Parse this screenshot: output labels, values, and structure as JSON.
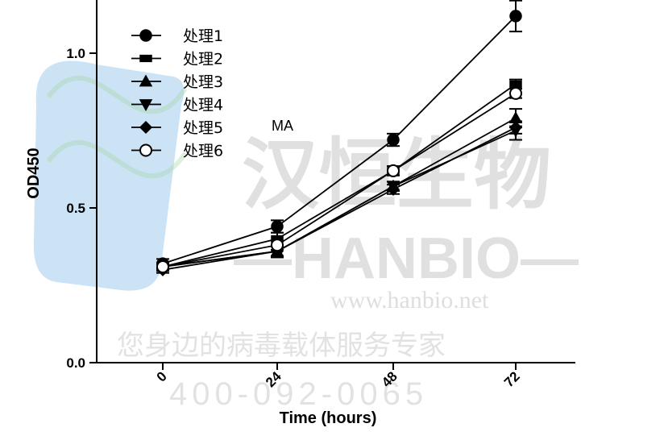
{
  "watermark": {
    "cn_name": "汉恒生物",
    "brand": "—HANBIO—",
    "url": "www.hanbio.net",
    "slogan": "您身边的病毒载体服务专家",
    "phone": "400-092-0065",
    "colors": {
      "text": "#c7c7c7",
      "logo_blue": "#7fb3e6"
    }
  },
  "chart_data": {
    "type": "line",
    "xlabel": "Time (hours)",
    "ylabel": "OD450",
    "categories": [
      "0",
      "24",
      "48",
      "72"
    ],
    "yticks": [
      "0.0",
      "0.5",
      "1.0"
    ],
    "ylim": [
      0,
      1.12
    ],
    "legend_position": "top-left",
    "annotation": "MA",
    "series": [
      {
        "name": "处理1",
        "marker": "circle",
        "values": [
          0.32,
          0.44,
          0.72,
          1.12
        ],
        "errors": [
          0.015,
          0.02,
          0.02,
          0.05
        ]
      },
      {
        "name": "处理2",
        "marker": "square",
        "values": [
          0.31,
          0.4,
          0.62,
          0.9
        ],
        "errors": [
          0.01,
          0.02,
          0.015,
          0.015
        ]
      },
      {
        "name": "处理3",
        "marker": "triangle-up",
        "values": [
          0.31,
          0.36,
          0.57,
          0.79
        ],
        "errors": [
          0.01,
          0.02,
          0.015,
          0.03
        ]
      },
      {
        "name": "处理4",
        "marker": "triangle-down",
        "values": [
          0.31,
          0.36,
          0.57,
          0.75
        ],
        "errors": [
          0.01,
          0.015,
          0.015,
          0.03
        ]
      },
      {
        "name": "处理5",
        "marker": "diamond",
        "values": [
          0.3,
          0.36,
          0.56,
          0.76
        ],
        "errors": [
          0.01,
          0.015,
          0.015,
          0.02
        ]
      },
      {
        "name": "处理6",
        "marker": "circle-open",
        "values": [
          0.31,
          0.38,
          0.62,
          0.87
        ],
        "errors": [
          0.01,
          0.015,
          0.015,
          0.015
        ]
      }
    ]
  }
}
